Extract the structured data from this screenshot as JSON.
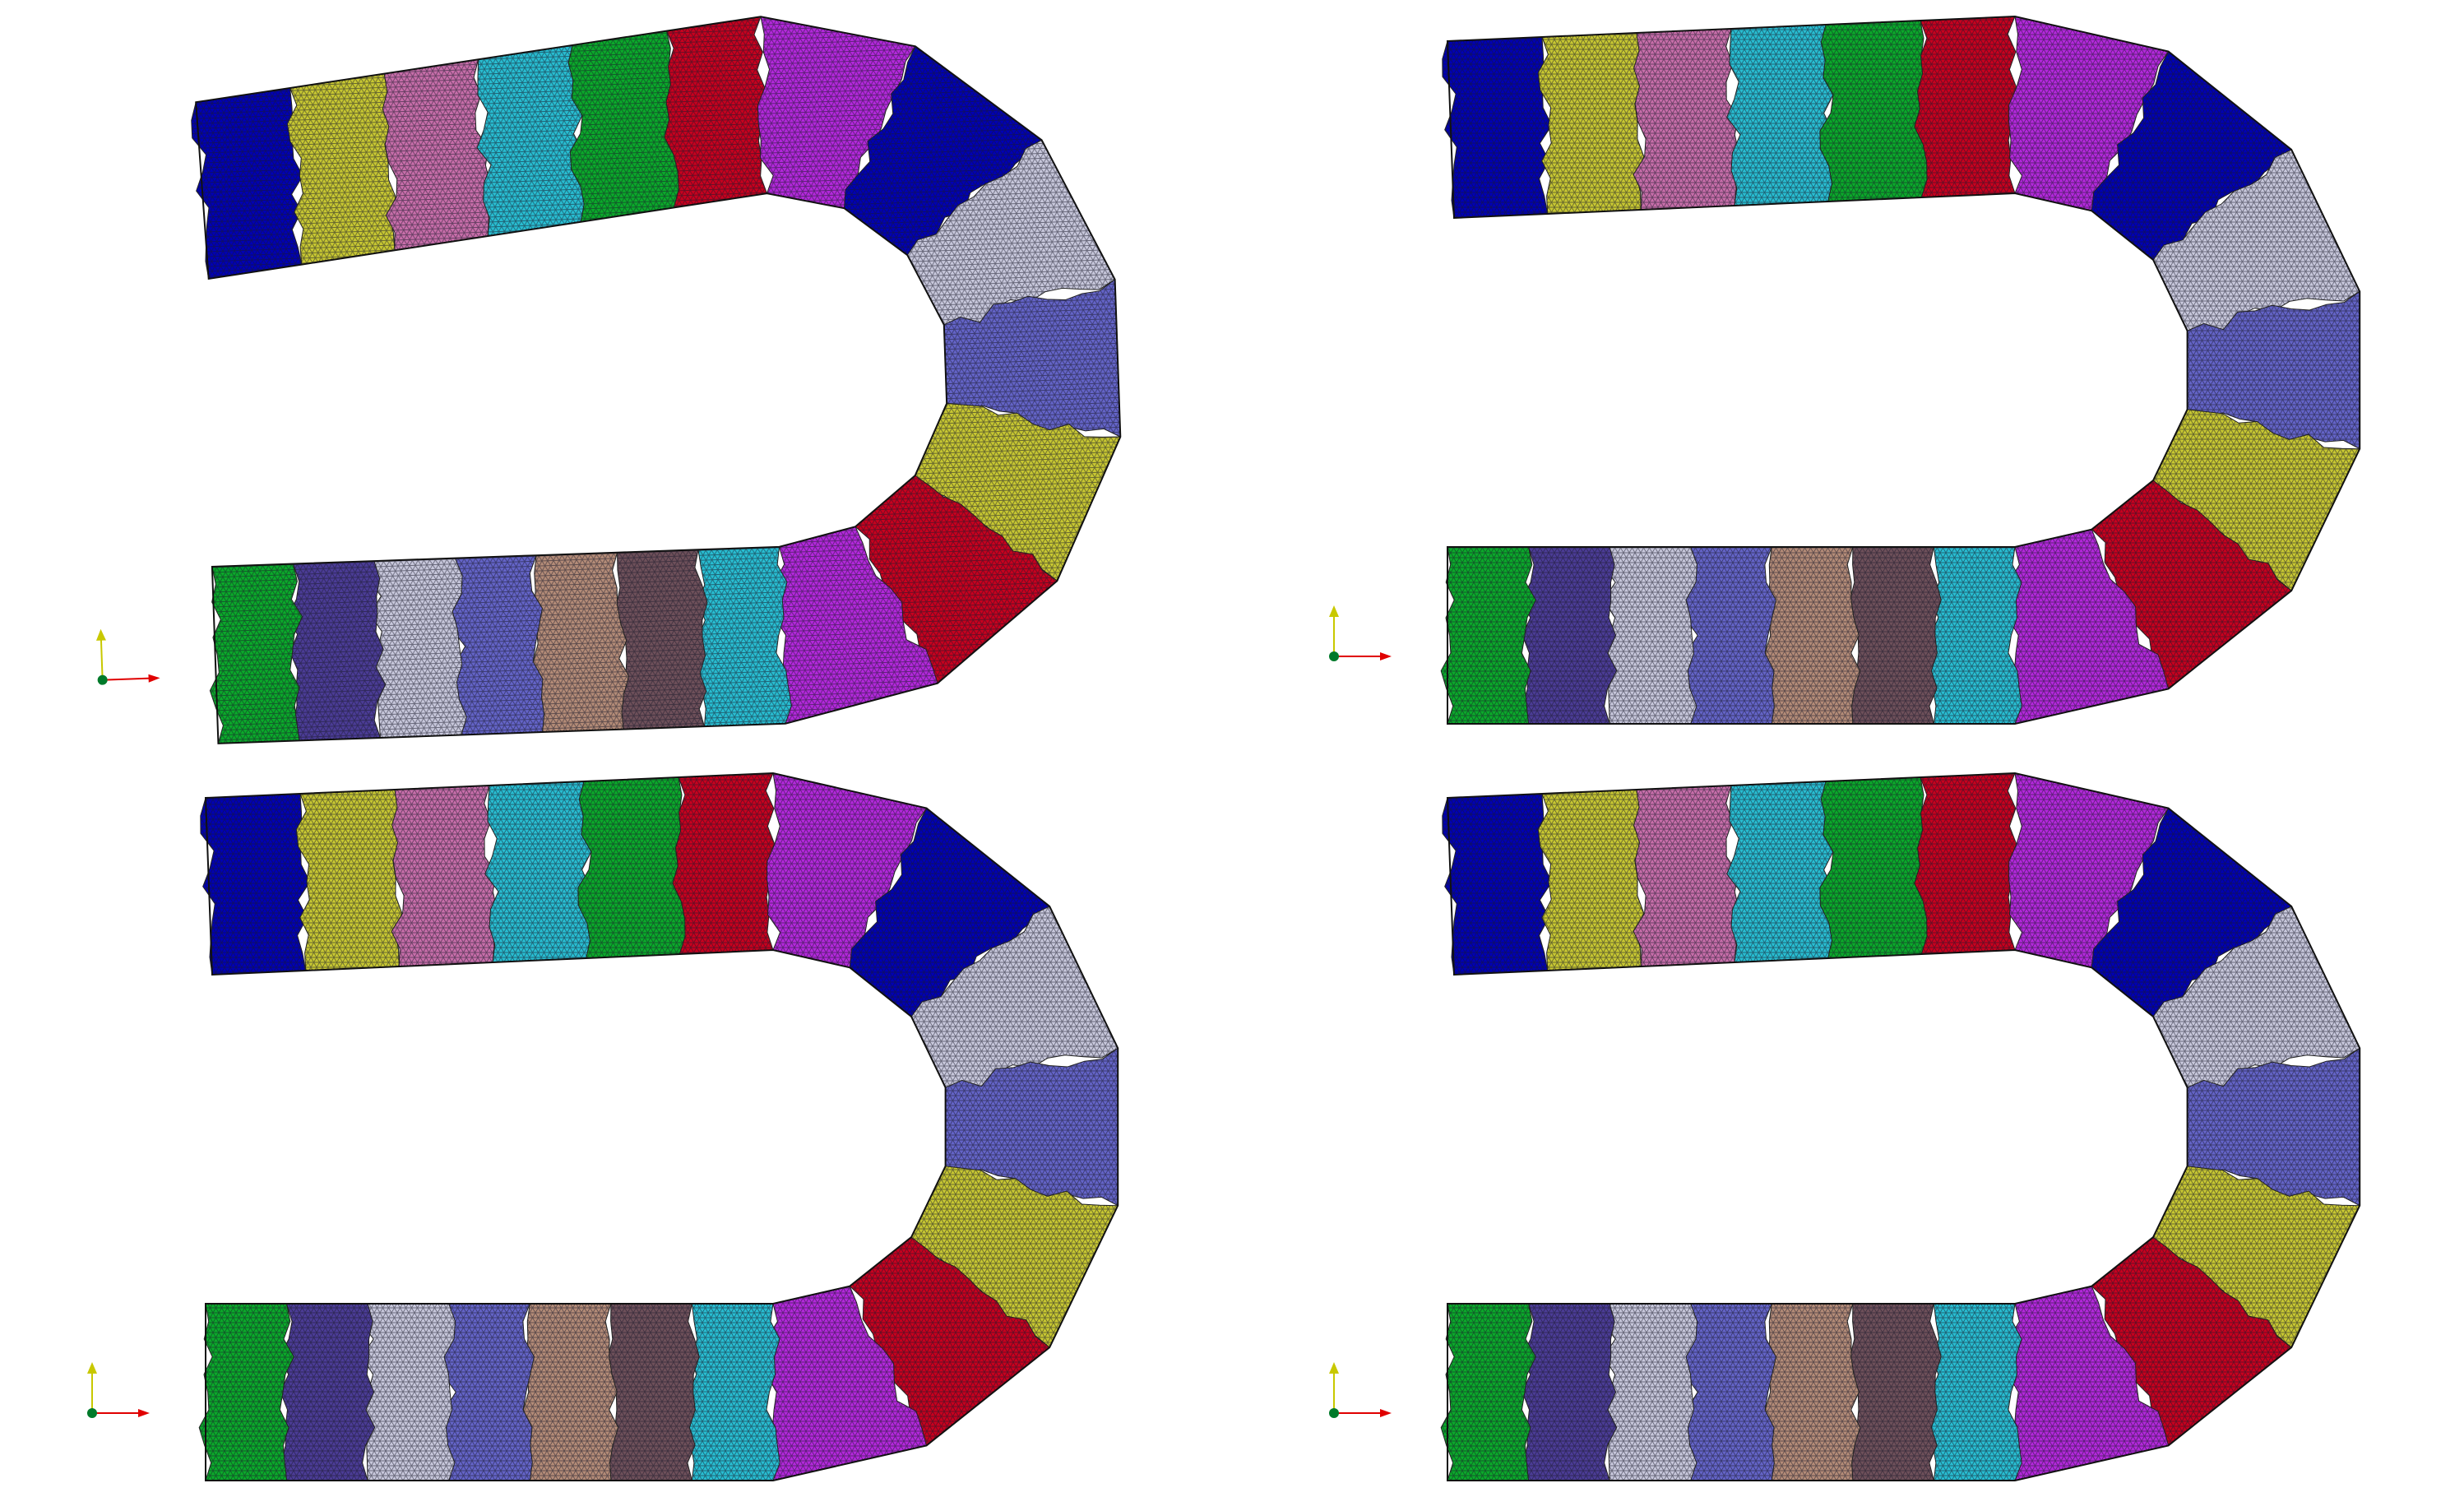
{
  "figure": {
    "panel_count": 4,
    "background": "#ffffff",
    "mesh_line_color": "#1a1a2a",
    "outline_color": "#111111",
    "axis_triad": {
      "vertical_color": "#c8c800",
      "horizontal_color": "#e00000",
      "origin_color": "#007a2a"
    },
    "partition_palette": [
      "#0000b4",
      "#c8c832",
      "#c86eaa",
      "#28bed2",
      "#0aaa2a",
      "#c8001e",
      "#b428dc",
      "#c8c8dc",
      "#6464c8",
      "#4b3c96",
      "#b48c78",
      "#6e505a"
    ],
    "panels": [
      {
        "name": "panel-top-left"
      },
      {
        "name": "panel-top-right"
      },
      {
        "name": "panel-bottom-left"
      },
      {
        "name": "panel-bottom-right"
      }
    ]
  }
}
